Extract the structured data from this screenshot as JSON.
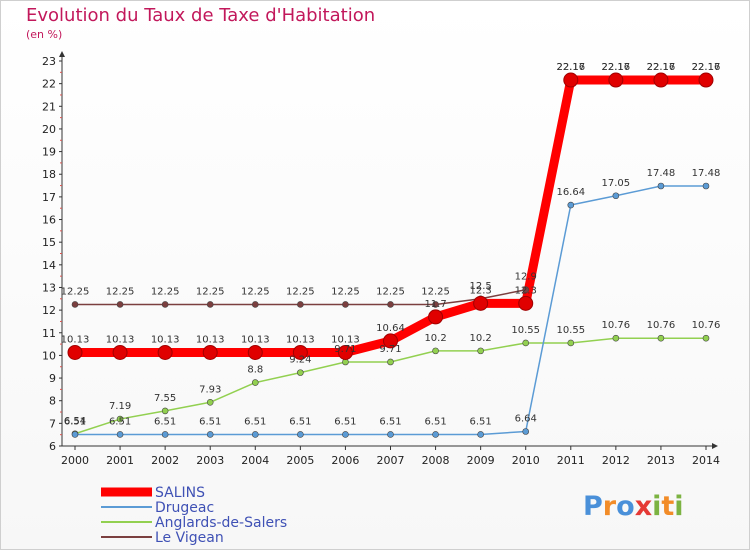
{
  "chart_data": {
    "type": "line",
    "title": "Evolution du Taux de Taxe d'Habitation",
    "subtitle": "(en %)",
    "x": [
      "2000",
      "2001",
      "2002",
      "2003",
      "2004",
      "2005",
      "2006",
      "2007",
      "2008",
      "2009",
      "2010",
      "2011",
      "2012",
      "2013",
      "2014"
    ],
    "ylim": [
      6,
      23
    ],
    "yticks": [
      6,
      7,
      8,
      9,
      10,
      11,
      12,
      13,
      14,
      15,
      16,
      17,
      18,
      19,
      20,
      21,
      22,
      23
    ],
    "grid": false,
    "legend_position": "bottom-left",
    "series": [
      {
        "name": "SALINS",
        "color": "#ff0000",
        "labels": [
          "10.13",
          "10.13",
          "10.13",
          "10.13",
          "10.13",
          "10.13",
          "10.13",
          "10.64",
          "11.7",
          "12.3",
          "12.3",
          "22.16",
          "22.16",
          "22.16",
          "22.16"
        ],
        "values": [
          10.13,
          10.13,
          10.13,
          10.13,
          10.13,
          10.13,
          10.13,
          10.64,
          11.7,
          12.3,
          12.3,
          22.16,
          22.16,
          22.16,
          22.16
        ]
      },
      {
        "name": "Drugeac",
        "color": "#5b9bd5",
        "labels": [
          "6.51",
          "6.51",
          "6.51",
          "6.51",
          "6.51",
          "6.51",
          "6.51",
          "6.51",
          "6.51",
          "6.51",
          "6.64",
          "16.64",
          "17.05",
          "17.48",
          "17.48"
        ],
        "values": [
          6.51,
          6.51,
          6.51,
          6.51,
          6.51,
          6.51,
          6.51,
          6.51,
          6.51,
          6.51,
          6.64,
          16.64,
          17.05,
          17.48,
          17.48
        ]
      },
      {
        "name": "Anglards-de-Salers",
        "color": "#92d050",
        "labels": [
          "6.54",
          "7.19",
          "7.55",
          "7.93",
          "8.8",
          "9.24",
          "9.71",
          "9.71",
          "10.2",
          "10.2",
          "10.55",
          "10.55",
          "10.76",
          "10.76",
          "10.76"
        ],
        "values": [
          6.54,
          7.19,
          7.55,
          7.93,
          8.8,
          9.24,
          9.71,
          9.71,
          10.2,
          10.2,
          10.55,
          10.55,
          10.76,
          10.76,
          10.76
        ]
      },
      {
        "name": "Le Vigean",
        "color": "#7b3f3f",
        "labels": [
          "12.25",
          "12.25",
          "12.25",
          "12.25",
          "12.25",
          "12.25",
          "12.25",
          "12.25",
          "12.25",
          "12.5",
          "12.9",
          "22.17",
          "22.17",
          "22.17",
          "22.17"
        ],
        "values": [
          12.25,
          12.25,
          12.25,
          12.25,
          12.25,
          12.25,
          12.25,
          12.25,
          12.25,
          12.5,
          12.9,
          22.17,
          22.17,
          22.17,
          22.17
        ]
      }
    ]
  },
  "brand": {
    "text": "Proxiti",
    "letters": [
      "P",
      "r",
      "o",
      "x",
      "i",
      "t",
      "i"
    ],
    "colors": [
      "#4a90d9",
      "#f28c28",
      "#4a90d9",
      "#e53935",
      "#7cb342",
      "#f28c28",
      "#7cb342"
    ]
  }
}
